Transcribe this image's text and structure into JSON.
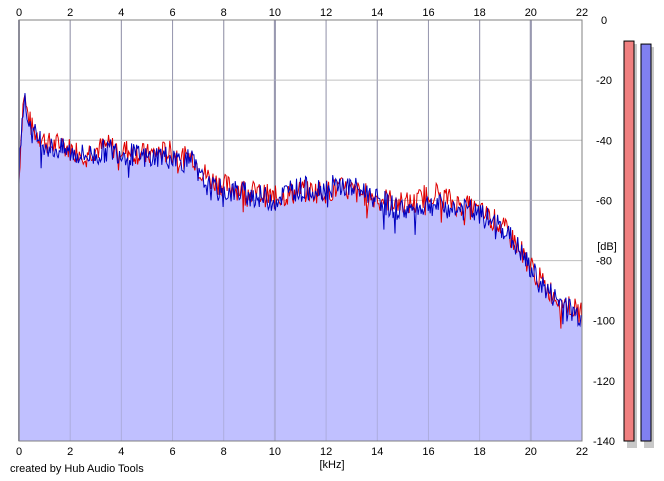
{
  "chart_data": {
    "type": "area",
    "title": "",
    "xlabel": "[kHz]",
    "ylabel": "[dB]",
    "xlim": [
      0,
      22
    ],
    "ylim": [
      -140,
      0
    ],
    "x_ticks": [
      0,
      2,
      4,
      6,
      8,
      10,
      12,
      14,
      16,
      18,
      20,
      22
    ],
    "y_ticks": [
      0,
      -20,
      -40,
      -60,
      -80,
      -100,
      -120,
      -140
    ],
    "grid": true,
    "series": [
      {
        "color": "#e00000",
        "x": [
          0,
          0.1,
          0.2,
          0.3,
          0.5,
          0.7,
          1,
          1.3,
          1.6,
          2,
          2.5,
          3,
          3.5,
          4,
          4.5,
          5,
          5.5,
          6,
          6.5,
          6.8,
          7,
          7.5,
          8,
          8.5,
          9,
          9.5,
          10,
          10.5,
          11,
          11.5,
          12,
          12.5,
          13,
          13.5,
          14,
          14.5,
          15,
          15.5,
          16,
          16.5,
          17,
          17.5,
          18,
          18.5,
          19,
          19.5,
          20,
          20.5,
          21,
          21.5,
          22
        ],
        "values": [
          -53,
          -35,
          -24,
          -30,
          -36,
          -38,
          -40,
          -42,
          -41,
          -43,
          -44,
          -43,
          -42,
          -43,
          -44,
          -45,
          -44,
          -44,
          -46,
          -45,
          -49,
          -53,
          -55,
          -56,
          -57,
          -58,
          -59,
          -58,
          -57,
          -57,
          -57,
          -56,
          -57,
          -58,
          -59,
          -60,
          -61,
          -61,
          -57,
          -58,
          -61,
          -62,
          -64,
          -66,
          -70,
          -75,
          -82,
          -88,
          -92,
          -95,
          -98
        ]
      },
      {
        "color": "#0000c0",
        "x": [
          0,
          0.1,
          0.2,
          0.3,
          0.5,
          0.7,
          1,
          1.3,
          1.6,
          2,
          2.5,
          3,
          3.5,
          4,
          4.5,
          5,
          5.5,
          6,
          6.5,
          6.8,
          7,
          7.5,
          8,
          8.5,
          9,
          9.5,
          10,
          10.5,
          11,
          11.5,
          12,
          12.5,
          13,
          13.5,
          14,
          14.5,
          15,
          15.5,
          16,
          16.5,
          17,
          17.5,
          18,
          18.5,
          19,
          19.5,
          20,
          20.5,
          21,
          21.5,
          22
        ],
        "values": [
          -52,
          -34,
          -26,
          -31,
          -37,
          -39,
          -41,
          -43,
          -43,
          -44,
          -45,
          -45,
          -43,
          -44,
          -45,
          -46,
          -45,
          -46,
          -47,
          -47,
          -52,
          -56,
          -57,
          -57,
          -58,
          -59,
          -60,
          -57,
          -56,
          -56,
          -56,
          -55,
          -56,
          -57,
          -59,
          -62,
          -63,
          -63,
          -61,
          -62,
          -63,
          -63,
          -65,
          -67,
          -70,
          -76,
          -83,
          -89,
          -93,
          -96,
          -99
        ]
      }
    ],
    "fill_color": "#c0c0ff",
    "level_meter": {
      "range_db": [
        -140,
        0
      ],
      "channels": [
        {
          "color": "#f08080",
          "level_db": -7
        },
        {
          "color": "#8080f0",
          "level_db": -8
        }
      ]
    }
  },
  "footer": {
    "credit": "created by Hub Audio Tools"
  }
}
